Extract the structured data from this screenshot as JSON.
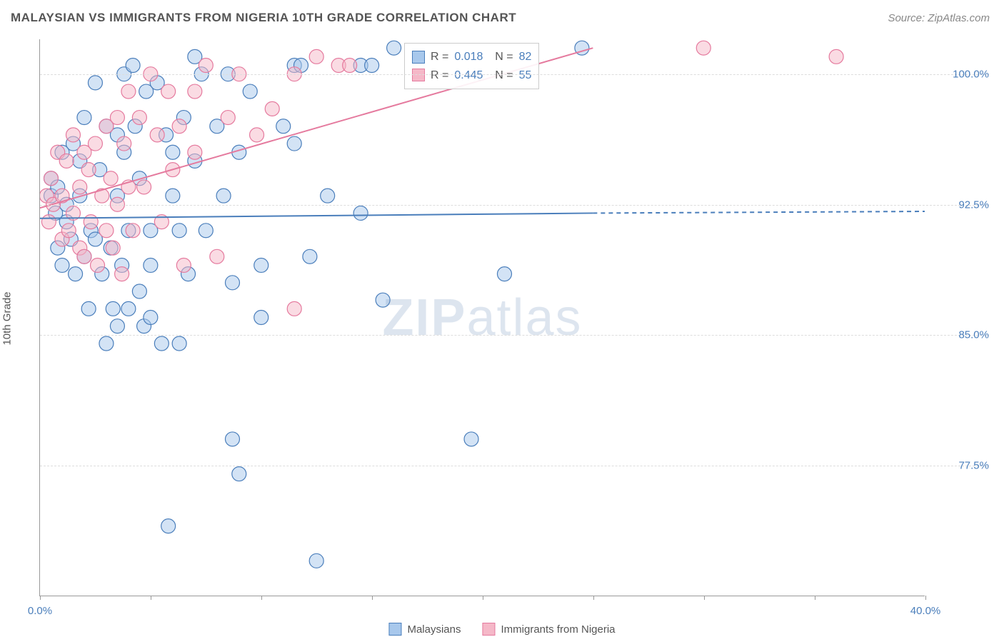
{
  "header": {
    "title": "MALAYSIAN VS IMMIGRANTS FROM NIGERIA 10TH GRADE CORRELATION CHART",
    "source": "Source: ZipAtlas.com"
  },
  "chart": {
    "type": "scatter",
    "y_axis_label": "10th Grade",
    "xlim": [
      0,
      40
    ],
    "ylim": [
      70,
      102
    ],
    "y_ticks": [
      {
        "value": 77.5,
        "label": "77.5%"
      },
      {
        "value": 85.0,
        "label": "85.0%"
      },
      {
        "value": 92.5,
        "label": "92.5%"
      },
      {
        "value": 100.0,
        "label": "100.0%"
      }
    ],
    "x_ticks": [
      {
        "value": 0,
        "label": "0.0%"
      },
      {
        "value": 5,
        "label": ""
      },
      {
        "value": 10,
        "label": ""
      },
      {
        "value": 15,
        "label": ""
      },
      {
        "value": 20,
        "label": ""
      },
      {
        "value": 25,
        "label": ""
      },
      {
        "value": 30,
        "label": ""
      },
      {
        "value": 35,
        "label": ""
      },
      {
        "value": 40,
        "label": "40.0%"
      }
    ],
    "background_color": "#ffffff",
    "grid_color": "#dddddd",
    "axis_color": "#999999",
    "text_color": "#555555",
    "tick_label_color": "#4a7ebb",
    "marker_radius": 10,
    "marker_opacity": 0.5,
    "line_width": 2,
    "series": [
      {
        "name": "Malaysians",
        "color_fill": "#a8c8ec",
        "color_stroke": "#4a7ebb",
        "trend_solid": {
          "x1": 0,
          "y1": 91.7,
          "x2": 25,
          "y2": 92.0
        },
        "trend_dashed": {
          "x1": 25,
          "y1": 92.0,
          "x2": 40,
          "y2": 92.1
        },
        "R": "0.018",
        "N": "82",
        "points": [
          [
            0.5,
            93.0
          ],
          [
            0.5,
            94.0
          ],
          [
            0.7,
            92.0
          ],
          [
            0.8,
            93.5
          ],
          [
            0.8,
            90.0
          ],
          [
            1.0,
            95.5
          ],
          [
            1.0,
            89.0
          ],
          [
            1.2,
            92.5
          ],
          [
            1.2,
            91.5
          ],
          [
            1.4,
            90.5
          ],
          [
            1.5,
            96.0
          ],
          [
            1.6,
            88.5
          ],
          [
            1.8,
            95.0
          ],
          [
            1.8,
            93.0
          ],
          [
            2.0,
            89.5
          ],
          [
            2.0,
            97.5
          ],
          [
            2.2,
            86.5
          ],
          [
            2.3,
            91.0
          ],
          [
            2.5,
            99.5
          ],
          [
            2.5,
            90.5
          ],
          [
            2.7,
            94.5
          ],
          [
            2.8,
            88.5
          ],
          [
            3.0,
            97.0
          ],
          [
            3.0,
            84.5
          ],
          [
            3.2,
            90.0
          ],
          [
            3.3,
            86.5
          ],
          [
            3.5,
            96.5
          ],
          [
            3.5,
            93.0
          ],
          [
            3.5,
            85.5
          ],
          [
            3.7,
            89.0
          ],
          [
            3.8,
            95.5
          ],
          [
            3.8,
            100.0
          ],
          [
            4.0,
            91.0
          ],
          [
            4.0,
            86.5
          ],
          [
            4.2,
            100.5
          ],
          [
            4.3,
            97.0
          ],
          [
            4.5,
            94.0
          ],
          [
            4.5,
            87.5
          ],
          [
            4.7,
            85.5
          ],
          [
            4.8,
            99.0
          ],
          [
            5.0,
            91.0
          ],
          [
            5.0,
            89.0
          ],
          [
            5.0,
            86.0
          ],
          [
            5.3,
            99.5
          ],
          [
            5.5,
            84.5
          ],
          [
            5.7,
            96.5
          ],
          [
            5.8,
            74.0
          ],
          [
            6.0,
            93.0
          ],
          [
            6.0,
            95.5
          ],
          [
            6.3,
            91.0
          ],
          [
            6.3,
            84.5
          ],
          [
            6.5,
            97.5
          ],
          [
            6.7,
            88.5
          ],
          [
            7.0,
            95.0
          ],
          [
            7.0,
            101.0
          ],
          [
            7.3,
            100.0
          ],
          [
            7.5,
            91.0
          ],
          [
            8.0,
            97.0
          ],
          [
            8.3,
            93.0
          ],
          [
            8.5,
            100.0
          ],
          [
            8.7,
            88.0
          ],
          [
            8.7,
            79.0
          ],
          [
            9.0,
            95.5
          ],
          [
            9.0,
            77.0
          ],
          [
            9.5,
            99.0
          ],
          [
            10.0,
            89.0
          ],
          [
            10.0,
            86.0
          ],
          [
            11.0,
            97.0
          ],
          [
            11.5,
            100.5
          ],
          [
            11.5,
            96.0
          ],
          [
            11.8,
            100.5
          ],
          [
            12.2,
            89.5
          ],
          [
            12.5,
            72.0
          ],
          [
            13.0,
            93.0
          ],
          [
            14.5,
            92.0
          ],
          [
            14.5,
            100.5
          ],
          [
            15.0,
            100.5
          ],
          [
            15.5,
            87.0
          ],
          [
            16.0,
            101.5
          ],
          [
            19.5,
            79.0
          ],
          [
            21.0,
            88.5
          ],
          [
            24.5,
            101.5
          ]
        ]
      },
      {
        "name": "Immigrants from Nigeria",
        "color_fill": "#f5b8c8",
        "color_stroke": "#e57a9e",
        "trend_solid": {
          "x1": 0,
          "y1": 92.3,
          "x2": 25,
          "y2": 101.5
        },
        "trend_dashed": null,
        "R": "0.445",
        "N": "55",
        "points": [
          [
            0.3,
            93.0
          ],
          [
            0.4,
            91.5
          ],
          [
            0.5,
            94.0
          ],
          [
            0.6,
            92.5
          ],
          [
            0.8,
            95.5
          ],
          [
            1.0,
            93.0
          ],
          [
            1.0,
            90.5
          ],
          [
            1.2,
            95.0
          ],
          [
            1.3,
            91.0
          ],
          [
            1.5,
            96.5
          ],
          [
            1.5,
            92.0
          ],
          [
            1.8,
            93.5
          ],
          [
            1.8,
            90.0
          ],
          [
            2.0,
            95.5
          ],
          [
            2.0,
            89.5
          ],
          [
            2.2,
            94.5
          ],
          [
            2.3,
            91.5
          ],
          [
            2.5,
            96.0
          ],
          [
            2.6,
            89.0
          ],
          [
            2.8,
            93.0
          ],
          [
            3.0,
            97.0
          ],
          [
            3.0,
            91.0
          ],
          [
            3.2,
            94.0
          ],
          [
            3.3,
            90.0
          ],
          [
            3.5,
            97.5
          ],
          [
            3.5,
            92.5
          ],
          [
            3.7,
            88.5
          ],
          [
            3.8,
            96.0
          ],
          [
            4.0,
            93.5
          ],
          [
            4.0,
            99.0
          ],
          [
            4.2,
            91.0
          ],
          [
            4.5,
            97.5
          ],
          [
            4.7,
            93.5
          ],
          [
            5.0,
            100.0
          ],
          [
            5.3,
            96.5
          ],
          [
            5.5,
            91.5
          ],
          [
            5.8,
            99.0
          ],
          [
            6.0,
            94.5
          ],
          [
            6.3,
            97.0
          ],
          [
            6.5,
            89.0
          ],
          [
            7.0,
            99.0
          ],
          [
            7.0,
            95.5
          ],
          [
            7.5,
            100.5
          ],
          [
            8.0,
            89.5
          ],
          [
            8.5,
            97.5
          ],
          [
            9.0,
            100.0
          ],
          [
            9.8,
            96.5
          ],
          [
            10.5,
            98.0
          ],
          [
            11.5,
            100.0
          ],
          [
            11.5,
            86.5
          ],
          [
            12.5,
            101.0
          ],
          [
            13.5,
            100.5
          ],
          [
            14.0,
            100.5
          ],
          [
            30.0,
            101.5
          ],
          [
            36.0,
            101.0
          ]
        ]
      }
    ]
  },
  "legend_bottom": {
    "items": [
      {
        "label": "Malaysians",
        "fill": "#a8c8ec",
        "stroke": "#4a7ebb"
      },
      {
        "label": "Immigrants from Nigeria",
        "fill": "#f5b8c8",
        "stroke": "#e57a9e"
      }
    ]
  },
  "watermark": {
    "prefix": "ZIP",
    "suffix": "atlas"
  }
}
